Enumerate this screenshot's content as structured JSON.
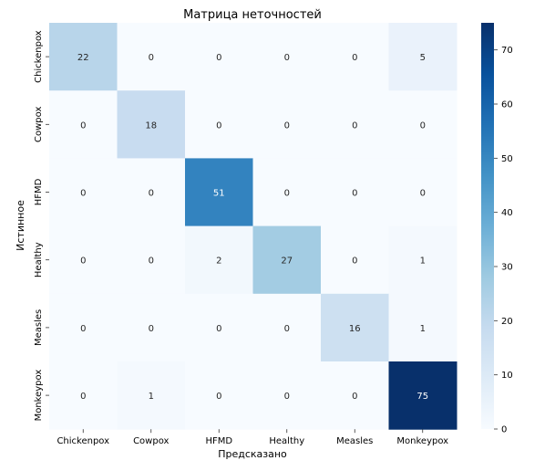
{
  "chart_data": {
    "type": "heatmap",
    "title": "Матрица неточностей",
    "xlabel": "Предсказано",
    "ylabel": "Истинное",
    "x_categories": [
      "Chickenpox",
      "Cowpox",
      "HFMD",
      "Healthy",
      "Measles",
      "Monkeypox"
    ],
    "y_categories": [
      "Chickenpox",
      "Cowpox",
      "HFMD",
      "Healthy",
      "Measles",
      "Monkeypox"
    ],
    "values": [
      [
        22,
        0,
        0,
        0,
        0,
        5
      ],
      [
        0,
        18,
        0,
        0,
        0,
        0
      ],
      [
        0,
        0,
        51,
        0,
        0,
        0
      ],
      [
        0,
        0,
        2,
        27,
        0,
        1
      ],
      [
        0,
        0,
        0,
        0,
        16,
        1
      ],
      [
        0,
        1,
        0,
        0,
        0,
        75
      ]
    ],
    "colorbar": {
      "range": [
        0,
        75
      ],
      "ticks": [
        0,
        10,
        20,
        30,
        40,
        50,
        60,
        70
      ],
      "colormap": "Blues"
    },
    "grid": false,
    "legend": "colorbar-right"
  }
}
